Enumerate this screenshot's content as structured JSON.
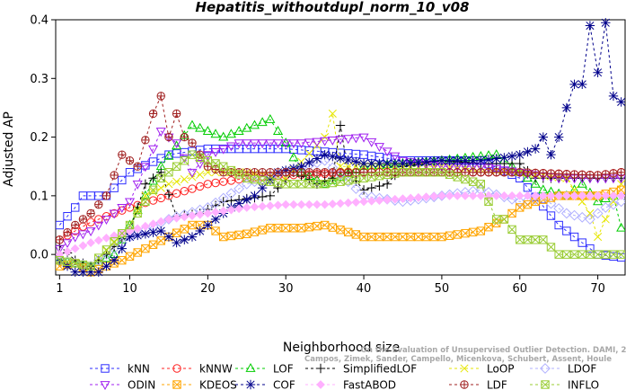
{
  "chart_data": {
    "type": "line",
    "title": "Hepatitis_withoutdupl_norm_10_v08",
    "xlabel": "Neighborhood size",
    "ylabel": "Adjusted AP",
    "xlim": [
      0.5,
      73.5
    ],
    "ylim": [
      -0.035,
      0.4
    ],
    "x_ticks": [
      1,
      10,
      20,
      30,
      40,
      50,
      60,
      70
    ],
    "y_ticks": [
      0.0,
      0.1,
      0.2,
      0.3,
      0.4
    ],
    "y_tick_labels": [
      "0.0",
      "0.1",
      "0.2",
      "0.3",
      "0.4"
    ],
    "grid": false,
    "legend_position": "bottom",
    "watermark": [
      "Campos, Zimek, Sander, Campello, Micenkova, Schubert, Assent, Houle",
      "On the Evaluation of Unsupervised Outlier Detection. DAMI, 2015."
    ],
    "series": [
      {
        "name": "kNN",
        "color": "#2e2eff",
        "marker": "square",
        "knots": [
          [
            1,
            0.05
          ],
          [
            3,
            0.08
          ],
          [
            4,
            0.1
          ],
          [
            7,
            0.1
          ],
          [
            10,
            0.14
          ],
          [
            15,
            0.17
          ],
          [
            20,
            0.18
          ],
          [
            25,
            0.18
          ],
          [
            30,
            0.18
          ],
          [
            40,
            0.17
          ],
          [
            45,
            0.16
          ],
          [
            55,
            0.16
          ],
          [
            60,
            0.13
          ],
          [
            65,
            0.05
          ],
          [
            68,
            0.02
          ],
          [
            70,
            0.0
          ],
          [
            73,
            -0.005
          ]
        ]
      },
      {
        "name": "kNNW",
        "color": "#ff2020",
        "marker": "circle",
        "knots": [
          [
            1,
            0.025
          ],
          [
            5,
            0.055
          ],
          [
            10,
            0.08
          ],
          [
            15,
            0.1
          ],
          [
            20,
            0.12
          ],
          [
            25,
            0.13
          ],
          [
            30,
            0.135
          ],
          [
            40,
            0.14
          ],
          [
            50,
            0.14
          ],
          [
            60,
            0.14
          ],
          [
            70,
            0.135
          ],
          [
            73,
            0.14
          ]
        ]
      },
      {
        "name": "LOF",
        "color": "#00cc00",
        "marker": "triangle",
        "knots": [
          [
            1,
            -0.01
          ],
          [
            5,
            -0.02
          ],
          [
            8,
            0.0
          ],
          [
            10,
            0.05
          ],
          [
            14,
            0.15
          ],
          [
            18,
            0.22
          ],
          [
            22,
            0.2
          ],
          [
            26,
            0.22
          ],
          [
            28,
            0.23
          ],
          [
            30,
            0.19
          ],
          [
            32,
            0.14
          ],
          [
            35,
            0.12
          ],
          [
            40,
            0.15
          ],
          [
            50,
            0.16
          ],
          [
            57,
            0.17
          ],
          [
            60,
            0.14
          ],
          [
            63,
            0.11
          ],
          [
            66,
            0.1
          ],
          [
            68,
            0.12
          ],
          [
            70,
            0.09
          ],
          [
            72,
            0.1
          ],
          [
            73,
            0.045
          ]
        ]
      },
      {
        "name": "SimplifiedLOF",
        "color": "#000000",
        "marker": "plus",
        "knots": [
          [
            1,
            0.015
          ],
          [
            3,
            -0.01
          ],
          [
            5,
            -0.02
          ],
          [
            7,
            0.0
          ],
          [
            10,
            0.04
          ],
          [
            12,
            0.12
          ],
          [
            14,
            0.14
          ],
          [
            16,
            0.065
          ],
          [
            19,
            0.07
          ],
          [
            22,
            0.09
          ],
          [
            25,
            0.095
          ],
          [
            28,
            0.1
          ],
          [
            31,
            0.14
          ],
          [
            34,
            0.12
          ],
          [
            36,
            0.13
          ],
          [
            37,
            0.22
          ],
          [
            38,
            0.14
          ],
          [
            40,
            0.11
          ],
          [
            43,
            0.12
          ],
          [
            45,
            0.15
          ],
          [
            50,
            0.16
          ],
          [
            55,
            0.155
          ],
          [
            60,
            0.155
          ],
          [
            62,
            0.13
          ],
          [
            68,
            0.13
          ],
          [
            73,
            0.13
          ]
        ]
      },
      {
        "name": "LoOP",
        "color": "#e6e600",
        "marker": "cross",
        "knots": [
          [
            1,
            -0.01
          ],
          [
            5,
            -0.02
          ],
          [
            8,
            0.02
          ],
          [
            10,
            0.05
          ],
          [
            12,
            0.1
          ],
          [
            15,
            0.12
          ],
          [
            20,
            0.14
          ],
          [
            25,
            0.14
          ],
          [
            30,
            0.13
          ],
          [
            35,
            0.2
          ],
          [
            36,
            0.24
          ],
          [
            37,
            0.15
          ],
          [
            40,
            0.15
          ],
          [
            50,
            0.15
          ],
          [
            60,
            0.14
          ],
          [
            66,
            0.13
          ],
          [
            69,
            0.07
          ],
          [
            70,
            0.03
          ],
          [
            73,
            0.12
          ]
        ]
      },
      {
        "name": "LDOF",
        "color": "#b0b0ff",
        "marker": "diamond",
        "knots": [
          [
            1,
            -0.01
          ],
          [
            5,
            -0.02
          ],
          [
            10,
            0.03
          ],
          [
            15,
            0.06
          ],
          [
            20,
            0.08
          ],
          [
            25,
            0.12
          ],
          [
            30,
            0.14
          ],
          [
            35,
            0.16
          ],
          [
            40,
            0.1
          ],
          [
            45,
            0.09
          ],
          [
            50,
            0.1
          ],
          [
            55,
            0.11
          ],
          [
            60,
            0.09
          ],
          [
            63,
            0.095
          ],
          [
            66,
            0.07
          ],
          [
            69,
            0.06
          ],
          [
            71,
            0.08
          ],
          [
            73,
            0.09
          ]
        ]
      },
      {
        "name": "ODIN",
        "color": "#a020f0",
        "marker": "triangle-down",
        "knots": [
          [
            1,
            0.01
          ],
          [
            3,
            0.03
          ],
          [
            5,
            0.04
          ],
          [
            8,
            0.07
          ],
          [
            10,
            0.09
          ],
          [
            12,
            0.15
          ],
          [
            14,
            0.21
          ],
          [
            16,
            0.19
          ],
          [
            18,
            0.14
          ],
          [
            20,
            0.17
          ],
          [
            24,
            0.19
          ],
          [
            28,
            0.19
          ],
          [
            32,
            0.19
          ],
          [
            36,
            0.195
          ],
          [
            40,
            0.2
          ],
          [
            45,
            0.16
          ],
          [
            50,
            0.15
          ],
          [
            55,
            0.15
          ],
          [
            60,
            0.14
          ],
          [
            65,
            0.13
          ],
          [
            70,
            0.13
          ],
          [
            73,
            0.13
          ]
        ]
      },
      {
        "name": "KDEOS",
        "color": "#ffa500",
        "marker": "square-x",
        "knots": [
          [
            1,
            -0.02
          ],
          [
            3,
            -0.015
          ],
          [
            5,
            -0.03
          ],
          [
            7,
            -0.02
          ],
          [
            9,
            -0.01
          ],
          [
            12,
            0.01
          ],
          [
            15,
            0.03
          ],
          [
            18,
            0.05
          ],
          [
            20,
            0.05
          ],
          [
            22,
            0.03
          ],
          [
            25,
            0.035
          ],
          [
            28,
            0.045
          ],
          [
            32,
            0.045
          ],
          [
            35,
            0.05
          ],
          [
            40,
            0.03
          ],
          [
            45,
            0.03
          ],
          [
            50,
            0.03
          ],
          [
            55,
            0.04
          ],
          [
            58,
            0.06
          ],
          [
            60,
            0.08
          ],
          [
            62,
            0.09
          ],
          [
            65,
            0.1
          ],
          [
            70,
            0.1
          ],
          [
            73,
            0.11
          ]
        ]
      },
      {
        "name": "COF",
        "color": "#00008b",
        "marker": "asterisk",
        "knots": [
          [
            1,
            -0.01
          ],
          [
            3,
            -0.03
          ],
          [
            6,
            -0.03
          ],
          [
            8,
            -0.01
          ],
          [
            10,
            0.03
          ],
          [
            14,
            0.04
          ],
          [
            16,
            0.02
          ],
          [
            18,
            0.03
          ],
          [
            20,
            0.05
          ],
          [
            23,
            0.08
          ],
          [
            26,
            0.1
          ],
          [
            29,
            0.14
          ],
          [
            32,
            0.15
          ],
          [
            35,
            0.17
          ],
          [
            40,
            0.155
          ],
          [
            45,
            0.155
          ],
          [
            50,
            0.16
          ],
          [
            55,
            0.16
          ],
          [
            58,
            0.165
          ],
          [
            60,
            0.17
          ],
          [
            62,
            0.18
          ],
          [
            63,
            0.2
          ],
          [
            64,
            0.17
          ],
          [
            65,
            0.2
          ],
          [
            66,
            0.25
          ],
          [
            67,
            0.29
          ],
          [
            68,
            0.29
          ],
          [
            69,
            0.39
          ],
          [
            70,
            0.31
          ],
          [
            71,
            0.395
          ],
          [
            72,
            0.27
          ],
          [
            73,
            0.26
          ]
        ]
      },
      {
        "name": "FastABOD",
        "color": "#ffb0ff",
        "marker": "diamond-filled",
        "knots": [
          [
            1,
            0.0
          ],
          [
            5,
            0.02
          ],
          [
            10,
            0.04
          ],
          [
            15,
            0.06
          ],
          [
            20,
            0.07
          ],
          [
            25,
            0.08
          ],
          [
            30,
            0.085
          ],
          [
            35,
            0.085
          ],
          [
            40,
            0.09
          ],
          [
            45,
            0.095
          ],
          [
            50,
            0.1
          ],
          [
            55,
            0.1
          ],
          [
            60,
            0.1
          ],
          [
            65,
            0.1
          ],
          [
            70,
            0.1
          ],
          [
            73,
            0.1
          ]
        ]
      },
      {
        "name": "LDF",
        "color": "#a02020",
        "marker": "circle-plus",
        "knots": [
          [
            1,
            0.025
          ],
          [
            3,
            0.05
          ],
          [
            5,
            0.07
          ],
          [
            7,
            0.1
          ],
          [
            9,
            0.17
          ],
          [
            11,
            0.15
          ],
          [
            13,
            0.24
          ],
          [
            14,
            0.27
          ],
          [
            15,
            0.2
          ],
          [
            16,
            0.24
          ],
          [
            17,
            0.2
          ],
          [
            18,
            0.19
          ],
          [
            20,
            0.15
          ],
          [
            22,
            0.14
          ],
          [
            25,
            0.14
          ],
          [
            30,
            0.14
          ],
          [
            40,
            0.14
          ],
          [
            50,
            0.14
          ],
          [
            60,
            0.14
          ],
          [
            70,
            0.135
          ],
          [
            73,
            0.14
          ]
        ]
      },
      {
        "name": "INFLO",
        "color": "#99cc33",
        "marker": "square-x",
        "knots": [
          [
            1,
            -0.01
          ],
          [
            5,
            -0.02
          ],
          [
            10,
            0.05
          ],
          [
            14,
            0.13
          ],
          [
            18,
            0.17
          ],
          [
            22,
            0.15
          ],
          [
            25,
            0.13
          ],
          [
            30,
            0.12
          ],
          [
            35,
            0.12
          ],
          [
            40,
            0.13
          ],
          [
            45,
            0.14
          ],
          [
            50,
            0.14
          ],
          [
            55,
            0.12
          ],
          [
            57,
            0.06
          ],
          [
            58,
            0.06
          ],
          [
            60,
            0.025
          ],
          [
            63,
            0.025
          ],
          [
            65,
            0.0
          ],
          [
            70,
            0.0
          ],
          [
            73,
            0.0
          ]
        ]
      }
    ]
  }
}
